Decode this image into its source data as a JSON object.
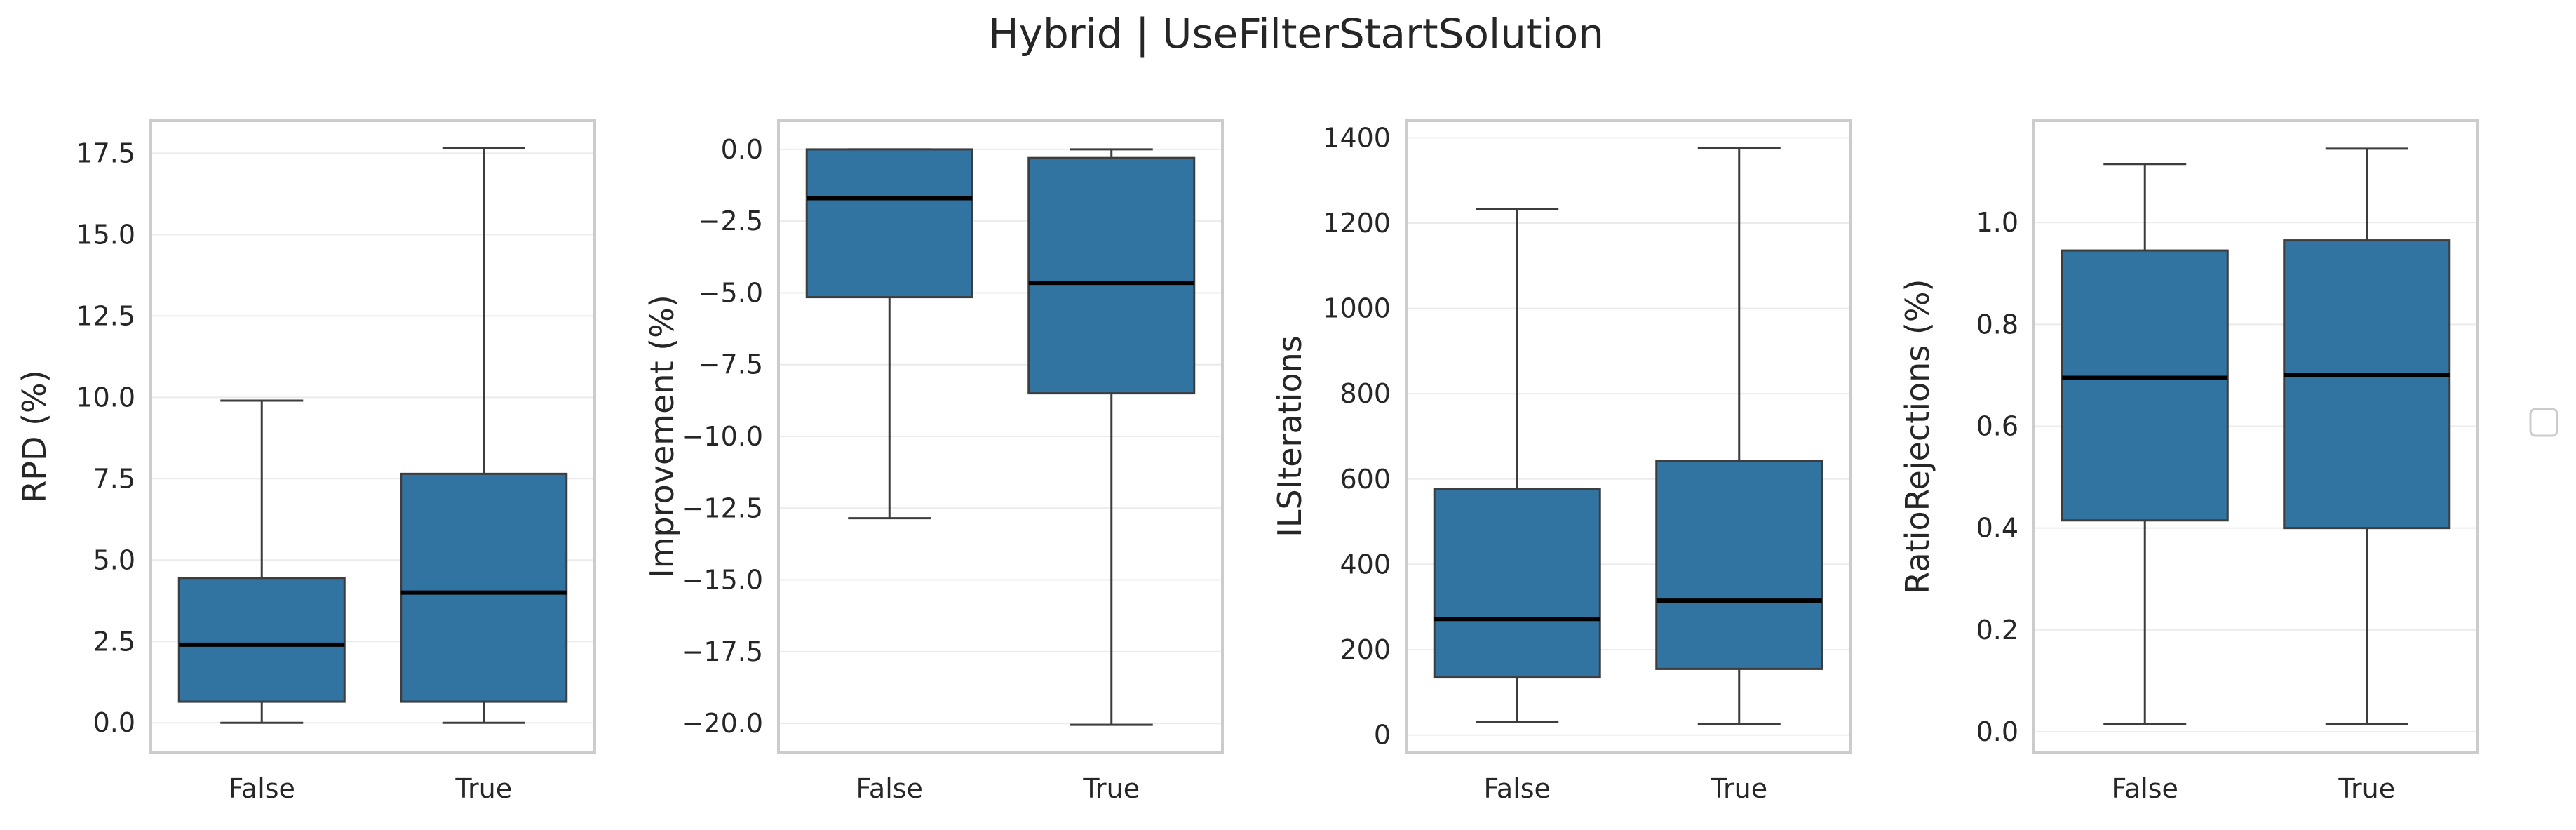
{
  "suptitle": "Hybrid | UseFilterStartSolution",
  "colors": {
    "box": "#3274a1",
    "edge": "#3d3d3d",
    "median": "#000000",
    "grid": "#ebebeb",
    "frame": "#cccccc"
  },
  "chart_data": [
    {
      "type": "box",
      "ylabel": "RPD (%)",
      "categories": [
        "False",
        "True"
      ],
      "ylim": [
        -0.9,
        18.5
      ],
      "yticks": [
        0.0,
        2.5,
        5.0,
        7.5,
        10.0,
        12.5,
        15.0,
        17.5
      ],
      "ytick_labels": [
        "0.0",
        "2.5",
        "5.0",
        "7.5",
        "10.0",
        "12.5",
        "15.0",
        "17.5"
      ],
      "boxes": [
        {
          "whislo": 0.0,
          "q1": 0.65,
          "med": 2.4,
          "q3": 4.45,
          "whishi": 9.9
        },
        {
          "whislo": 0.0,
          "q1": 0.65,
          "med": 4.0,
          "q3": 7.65,
          "whishi": 17.65
        }
      ]
    },
    {
      "type": "box",
      "ylabel": "Improvement (%)",
      "categories": [
        "False",
        "True"
      ],
      "ylim": [
        -21.0,
        1.0
      ],
      "yticks": [
        0.0,
        -2.5,
        -5.0,
        -7.5,
        -10.0,
        -12.5,
        -15.0,
        -17.5,
        -20.0
      ],
      "ytick_labels": [
        "0.0",
        "−2.5",
        "−5.0",
        "−7.5",
        "−10.0",
        "−12.5",
        "−15.0",
        "−17.5",
        "−20.0"
      ],
      "boxes": [
        {
          "whislo": -12.85,
          "q1": -5.15,
          "med": -1.7,
          "q3": 0.0,
          "whishi": 0.0
        },
        {
          "whislo": -20.05,
          "q1": -8.5,
          "med": -4.65,
          "q3": -0.3,
          "whishi": 0.0
        }
      ]
    },
    {
      "type": "box",
      "ylabel": "ILSIterations",
      "categories": [
        "False",
        "True"
      ],
      "ylim": [
        -40,
        1440
      ],
      "yticks": [
        0,
        200,
        400,
        600,
        800,
        1000,
        1200,
        1400
      ],
      "ytick_labels": [
        "0",
        "200",
        "400",
        "600",
        "800",
        "1000",
        "1200",
        "1400"
      ],
      "boxes": [
        {
          "whislo": 30,
          "q1": 135,
          "med": 272,
          "q3": 577,
          "whishi": 1232
        },
        {
          "whislo": 25,
          "q1": 155,
          "med": 315,
          "q3": 642,
          "whishi": 1375
        }
      ]
    },
    {
      "type": "box",
      "ylabel": "RatioRejections (%)",
      "categories": [
        "False",
        "True"
      ],
      "ylim": [
        -0.04,
        1.2
      ],
      "yticks": [
        0.0,
        0.2,
        0.4,
        0.6,
        0.8,
        1.0
      ],
      "ytick_labels": [
        "0.0",
        "0.2",
        "0.4",
        "0.6",
        "0.8",
        "1.0"
      ],
      "boxes": [
        {
          "whislo": 0.015,
          "q1": 0.415,
          "med": 0.695,
          "q3": 0.945,
          "whishi": 1.115
        },
        {
          "whislo": 0.015,
          "q1": 0.4,
          "med": 0.7,
          "q3": 0.965,
          "whishi": 1.145
        }
      ]
    }
  ]
}
